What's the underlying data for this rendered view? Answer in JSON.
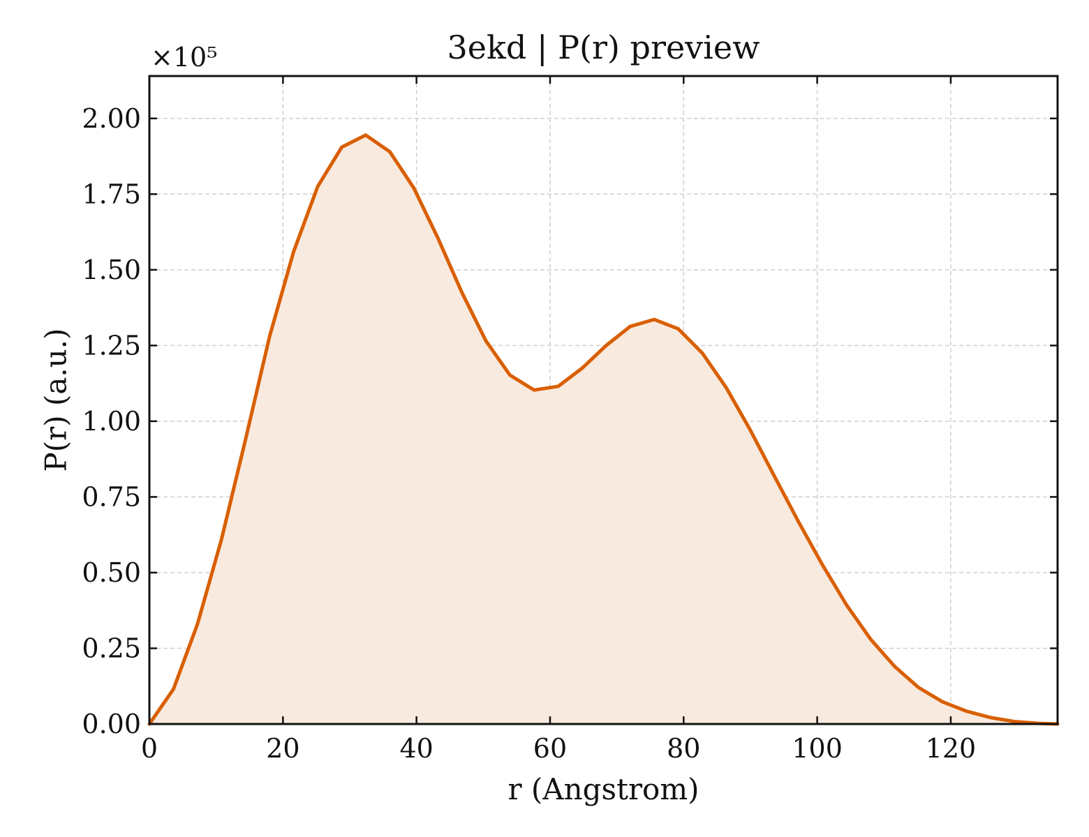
{
  "chart_data": {
    "type": "area",
    "title": "3ekd | P(r) preview",
    "xlabel": "r (Angstrom)",
    "ylabel": "P(r) (a.u.)",
    "y_offset_label": "×10⁵",
    "xlim": [
      0,
      136
    ],
    "ylim": [
      0,
      2.14
    ],
    "xticks": [
      0,
      20,
      40,
      60,
      80,
      100,
      120
    ],
    "xtick_labels": [
      "0",
      "20",
      "40",
      "60",
      "80",
      "100",
      "120"
    ],
    "yticks": [
      0,
      0.25,
      0.5,
      0.75,
      1.0,
      1.25,
      1.5,
      1.75,
      2.0
    ],
    "ytick_labels": [
      "0.00",
      "0.25",
      "0.50",
      "0.75",
      "1.00",
      "1.25",
      "1.50",
      "1.75",
      "2.00"
    ],
    "grid": true,
    "colors": {
      "line": "#d95f02",
      "fill": "#f9eadf"
    },
    "series": [
      {
        "x": [
          0,
          3.6,
          7.2,
          10.8,
          14.4,
          18.0,
          21.6,
          25.2,
          28.8,
          32.4,
          36.0,
          39.6,
          43.2,
          46.8,
          50.4,
          54.0,
          57.6,
          61.2,
          64.8,
          68.4,
          72.0,
          75.6,
          79.2,
          82.8,
          86.4,
          90.0,
          93.6,
          97.2,
          100.8,
          104.4,
          108.0,
          111.6,
          115.2,
          118.8,
          122.4,
          126.0,
          129.6,
          133.2,
          136
        ],
        "y": [
          0.0,
          0.115,
          0.33,
          0.61,
          0.94,
          1.28,
          1.56,
          1.775,
          1.905,
          1.945,
          1.89,
          1.77,
          1.605,
          1.425,
          1.265,
          1.152,
          1.103,
          1.115,
          1.175,
          1.25,
          1.313,
          1.336,
          1.305,
          1.225,
          1.11,
          0.97,
          0.818,
          0.668,
          0.525,
          0.393,
          0.28,
          0.19,
          0.12,
          0.073,
          0.042,
          0.021,
          0.008,
          0.002,
          0.0
        ]
      }
    ]
  }
}
